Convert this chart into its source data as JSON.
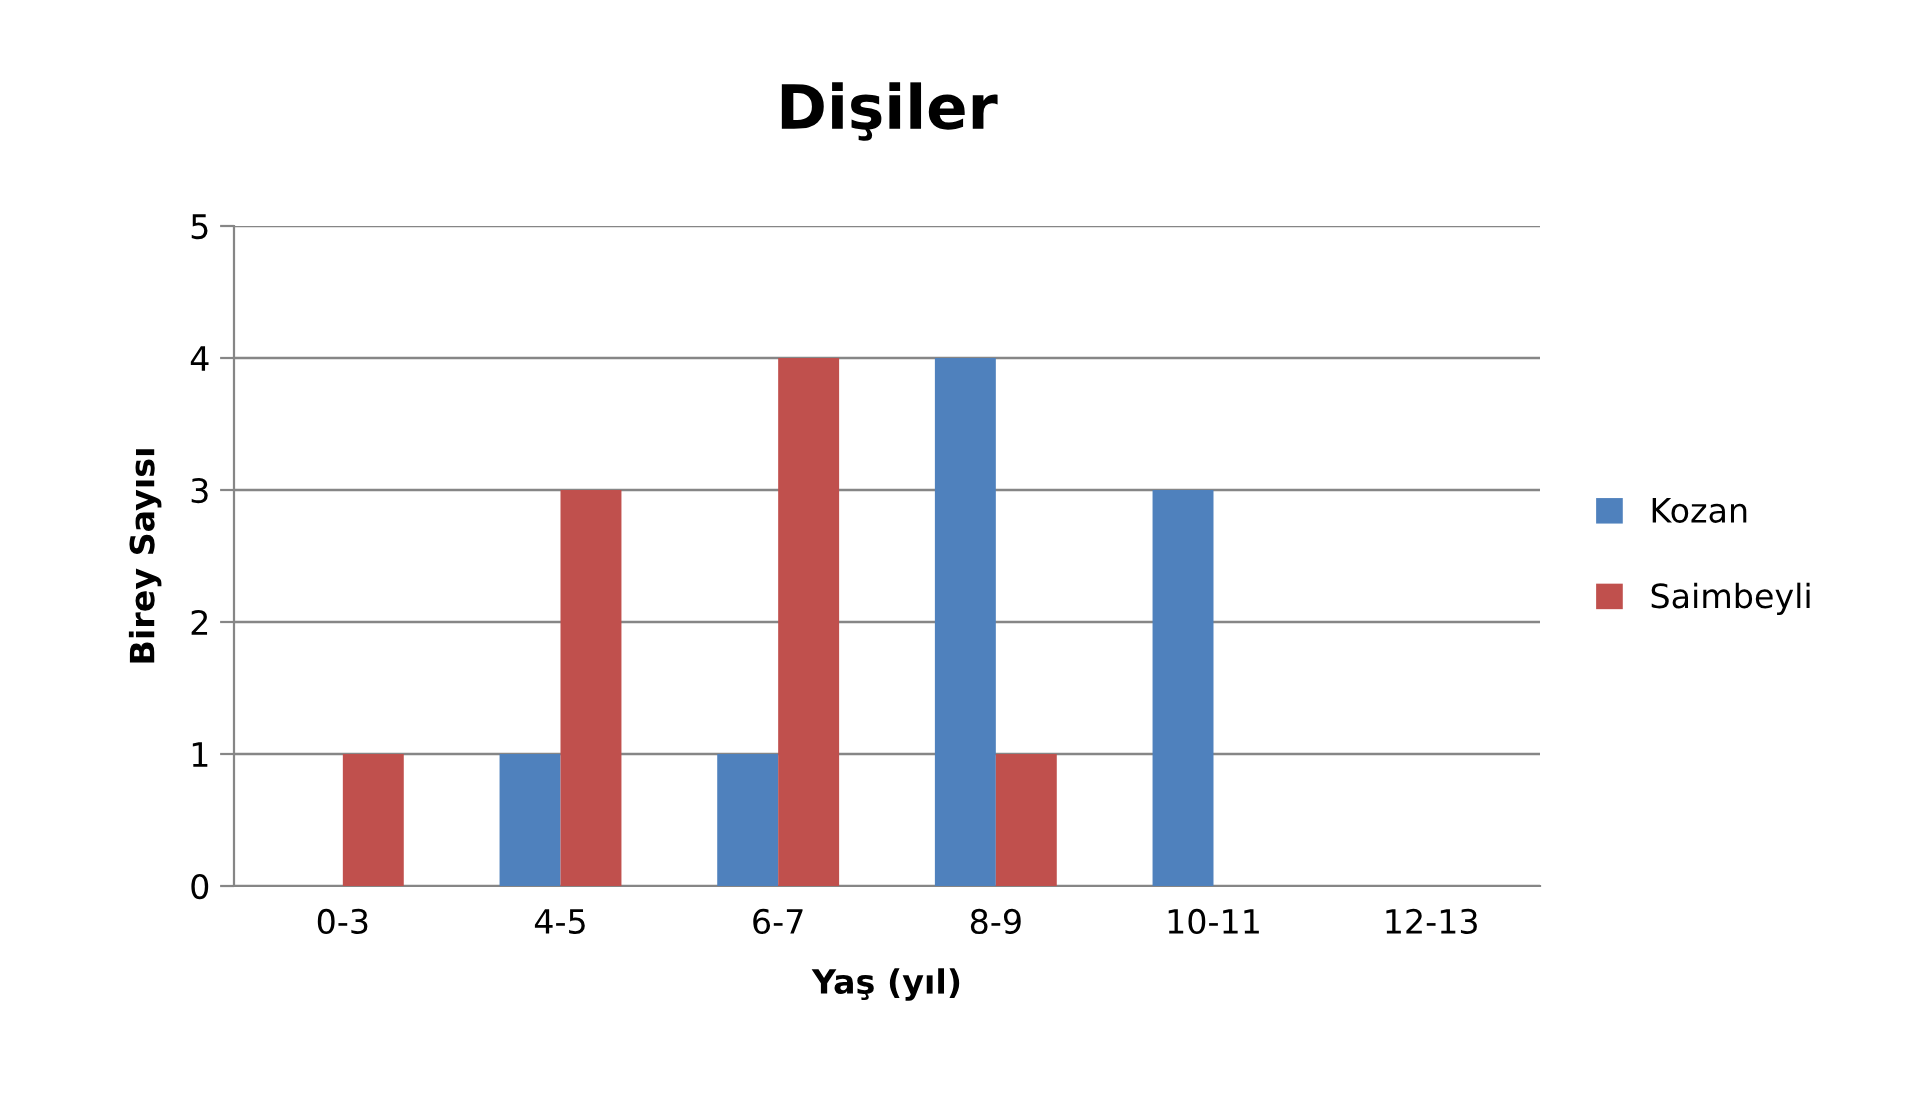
{
  "chart_data": {
    "type": "bar",
    "title": "Dişiler",
    "xlabel": "Yaş (yıl)",
    "ylabel": "Birey Sayısı",
    "categories": [
      "0-3",
      "4-5",
      "6-7",
      "8-9",
      "10-11",
      "12-13"
    ],
    "series": [
      {
        "name": "Kozan",
        "color": "#4f81bd",
        "values": [
          0,
          1,
          1,
          4,
          3,
          0
        ]
      },
      {
        "name": "Saimbeyli",
        "color": "#c0504d",
        "values": [
          1,
          3,
          4,
          1,
          0,
          0
        ]
      }
    ],
    "ylim": [
      0,
      5
    ],
    "yticks": [
      0,
      1,
      2,
      3,
      4,
      5
    ],
    "grid": "y",
    "legend": "right"
  }
}
